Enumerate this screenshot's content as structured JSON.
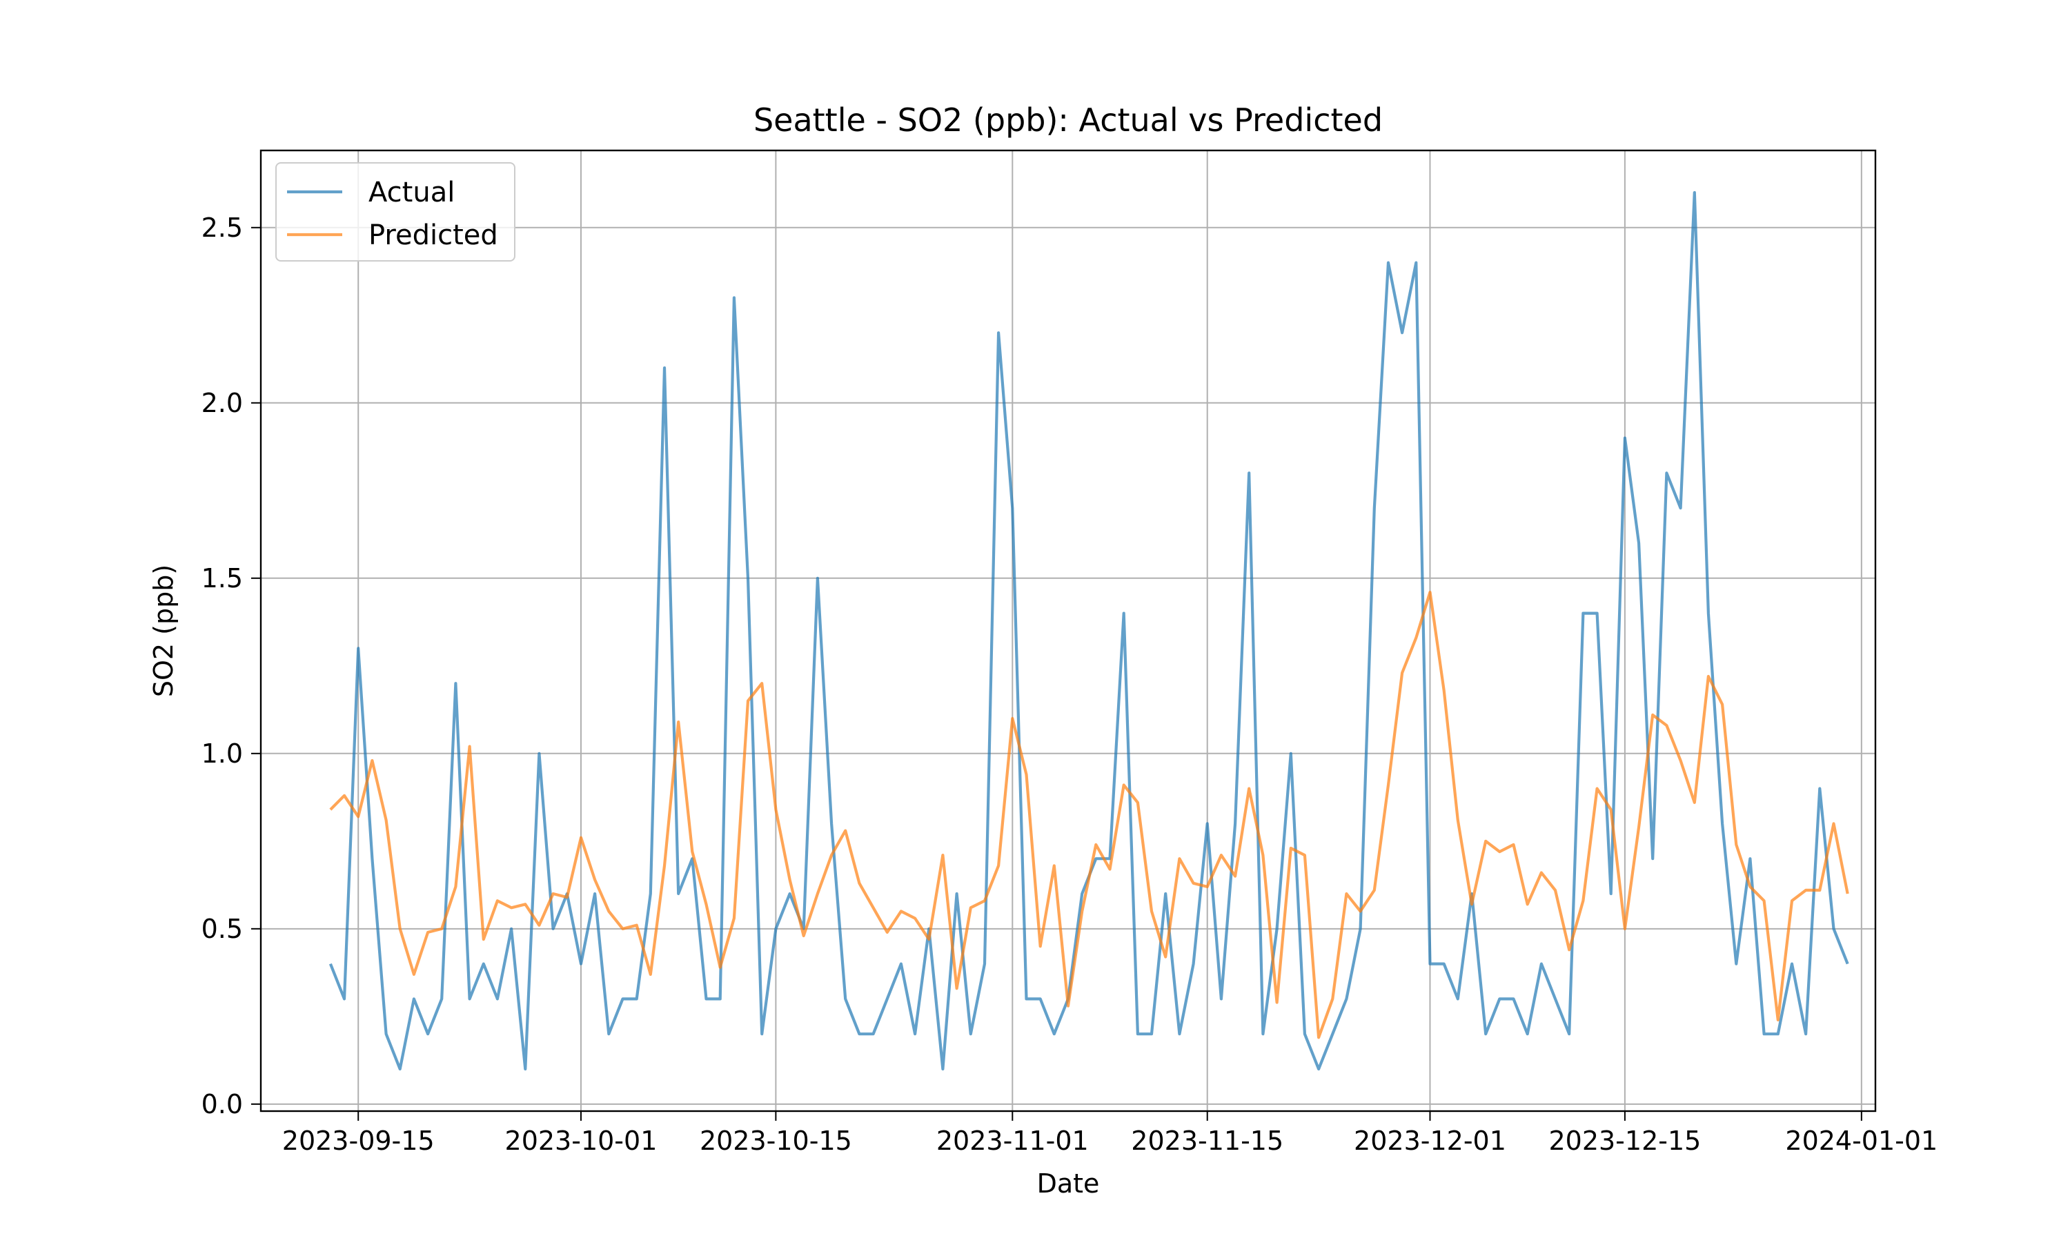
{
  "chart_data": {
    "type": "line",
    "title": "Seattle - SO2 (ppb): Actual vs Predicted",
    "xlabel": "Date",
    "ylabel": "SO2 (ppb)",
    "ylim": [
      -0.02,
      2.72
    ],
    "xlim": [
      "2023-09-08",
      "2024-01-02"
    ],
    "grid": true,
    "legend_position": "upper-left",
    "x_ticks": [
      "2023-09-15",
      "2023-10-01",
      "2023-10-15",
      "2023-11-01",
      "2023-11-15",
      "2023-12-01",
      "2023-12-15",
      "2024-01-01"
    ],
    "y_ticks": [
      "0.0",
      "0.5",
      "1.0",
      "1.5",
      "2.0",
      "2.5"
    ],
    "x_start": "2023-09-13",
    "x_step": "1 day",
    "series": [
      {
        "name": "Actual",
        "color": "#1f77b4",
        "values": [
          0.4,
          0.3,
          1.3,
          0.7,
          0.2,
          0.1,
          0.3,
          0.2,
          0.3,
          1.2,
          0.3,
          0.4,
          0.3,
          0.5,
          0.1,
          1.0,
          0.5,
          0.6,
          0.4,
          0.6,
          0.2,
          0.3,
          0.3,
          0.6,
          2.1,
          0.6,
          0.7,
          0.3,
          0.3,
          2.3,
          1.5,
          0.2,
          0.5,
          0.6,
          0.5,
          1.5,
          0.8,
          0.3,
          0.2,
          0.2,
          0.3,
          0.4,
          0.2,
          0.5,
          0.1,
          0.6,
          0.2,
          0.4,
          2.2,
          1.7,
          0.3,
          0.3,
          0.2,
          0.3,
          0.6,
          0.7,
          0.7,
          1.4,
          0.2,
          0.2,
          0.6,
          0.2,
          0.4,
          0.8,
          0.3,
          0.8,
          1.8,
          0.2,
          0.5,
          1.0,
          0.2,
          0.1,
          0.2,
          0.3,
          0.5,
          1.7,
          2.4,
          2.2,
          2.4,
          0.4,
          0.4,
          0.3,
          0.6,
          0.2,
          0.3,
          0.3,
          0.2,
          0.4,
          0.3,
          0.2,
          1.4,
          1.4,
          0.6,
          1.9,
          1.6,
          0.7,
          1.8,
          1.7,
          2.6,
          1.4,
          0.8,
          0.4,
          0.7,
          0.2,
          0.2,
          0.4,
          0.2,
          0.9,
          0.5,
          0.4
        ]
      },
      {
        "name": "Predicted",
        "color": "#ff7f0e",
        "values": [
          0.84,
          0.88,
          0.82,
          0.98,
          0.81,
          0.5,
          0.37,
          0.49,
          0.5,
          0.62,
          1.02,
          0.47,
          0.58,
          0.56,
          0.57,
          0.51,
          0.6,
          0.59,
          0.76,
          0.64,
          0.55,
          0.5,
          0.51,
          0.37,
          0.68,
          1.09,
          0.72,
          0.57,
          0.39,
          0.53,
          1.15,
          1.2,
          0.84,
          0.64,
          0.48,
          0.6,
          0.71,
          0.78,
          0.63,
          0.56,
          0.49,
          0.55,
          0.53,
          0.47,
          0.71,
          0.33,
          0.56,
          0.58,
          0.68,
          1.1,
          0.94,
          0.45,
          0.68,
          0.28,
          0.55,
          0.74,
          0.67,
          0.91,
          0.86,
          0.55,
          0.42,
          0.7,
          0.63,
          0.62,
          0.71,
          0.65,
          0.9,
          0.71,
          0.29,
          0.73,
          0.71,
          0.19,
          0.3,
          0.6,
          0.55,
          0.61,
          0.91,
          1.23,
          1.33,
          1.46,
          1.18,
          0.81,
          0.57,
          0.75,
          0.72,
          0.74,
          0.57,
          0.66,
          0.61,
          0.44,
          0.58,
          0.9,
          0.84,
          0.5,
          0.79,
          1.11,
          1.08,
          0.98,
          0.86,
          1.22,
          1.14,
          0.74,
          0.62,
          0.58,
          0.24,
          0.58,
          0.61,
          0.61,
          0.8,
          0.6
        ]
      }
    ]
  }
}
